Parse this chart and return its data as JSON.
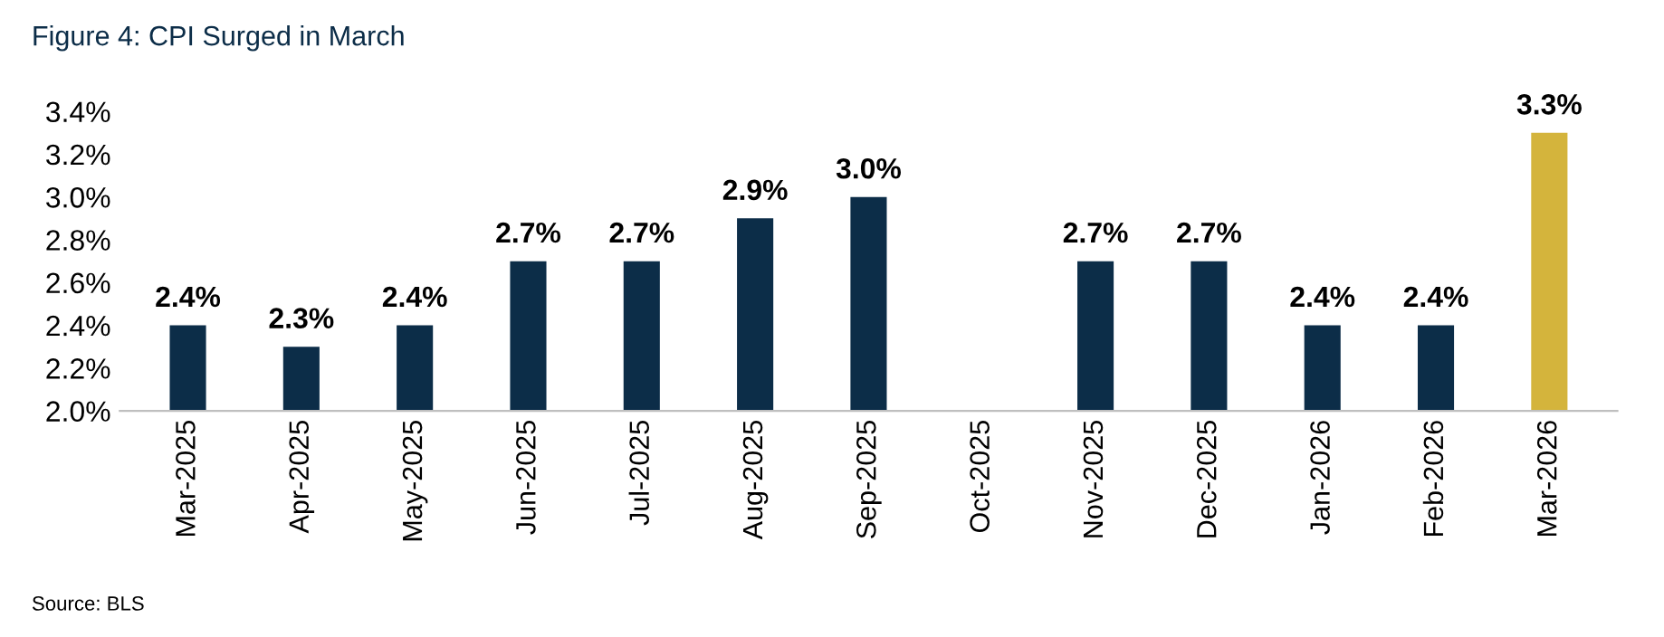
{
  "chart_data": {
    "type": "bar",
    "title": "Figure 4: CPI Surged in March",
    "categories": [
      "Mar-2025",
      "Apr-2025",
      "May-2025",
      "Jun-2025",
      "Jul-2025",
      "Aug-2025",
      "Sep-2025",
      "Oct-2025",
      "Nov-2025",
      "Dec-2025",
      "Jan-2026",
      "Feb-2026",
      "Mar-2026"
    ],
    "values": [
      2.4,
      2.3,
      2.4,
      2.7,
      2.7,
      2.9,
      3.0,
      null,
      2.7,
      2.7,
      2.4,
      2.4,
      3.3
    ],
    "value_labels": [
      "2.4%",
      "2.3%",
      "2.4%",
      "2.7%",
      "2.7%",
      "2.9%",
      "3.0%",
      null,
      "2.7%",
      "2.7%",
      "2.4%",
      "2.4%",
      "3.3%"
    ],
    "colors": [
      "#0c2d48",
      "#0c2d48",
      "#0c2d48",
      "#0c2d48",
      "#0c2d48",
      "#0c2d48",
      "#0c2d48",
      "#0c2d48",
      "#0c2d48",
      "#0c2d48",
      "#0c2d48",
      "#0c2d48",
      "#d4b43c"
    ],
    "ylim": [
      2.0,
      3.4
    ],
    "yticks": [
      {
        "value": 2.0,
        "label": "2.0%"
      },
      {
        "value": 2.2,
        "label": "2.2%"
      },
      {
        "value": 2.4,
        "label": "2.4%"
      },
      {
        "value": 2.6,
        "label": "2.6%"
      },
      {
        "value": 2.8,
        "label": "2.8%"
      },
      {
        "value": 3.0,
        "label": "3.0%"
      },
      {
        "value": 3.2,
        "label": "3.2%"
      },
      {
        "value": 3.4,
        "label": "3.4%"
      }
    ],
    "grid": false,
    "legend": false,
    "annotations": [
      "Source: BLS"
    ]
  }
}
